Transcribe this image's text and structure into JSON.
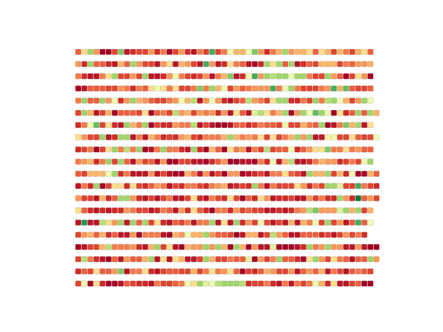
{
  "chart_data": {
    "type": "scatter",
    "marker": "square",
    "colormap": "RdYlGn",
    "vmin": 0,
    "vmax": 9,
    "axes_visible": false,
    "grid": false,
    "x": [
      0,
      1,
      2,
      3,
      4,
      5,
      6,
      7,
      8,
      9,
      10,
      11,
      12,
      13,
      14,
      15,
      15,
      16,
      17,
      18,
      19,
      20,
      21,
      22,
      23,
      24,
      25,
      26,
      27,
      28,
      29,
      30,
      31,
      32,
      33,
      34,
      35,
      36,
      37,
      38,
      39,
      40,
      41,
      42,
      43,
      44,
      45,
      46,
      47,
      48,
      49
    ],
    "rows": [
      "ejqgaadrbcddgcffadgcbfdtdfmhhmrgcfhqghhjejhdhfdhje",
      "gcqeecbheqgddbgkjbhgdbtgbcjfebacqjqeqbcedhhhdfeggh",
      "fcbbfjqddgdqbbcjgmfdcdgbfhrbcmtgqpqqmqqfddqgeadjga",
      "abeeeddgfcfejmjdfjddfrfqhmdgefgggtfmqfdddfgthsedde",
      "fqeeqgmcgqhgeddgfgmhpbgmgcbdepgfdjqqccfdqfpqmhdgqm",
      "dqhbdhaeeedjaeffdpghdgfgcgbjebnpjfhqagqmsqmajceqeqh",
      "cfmsdjcbqhfqadcccgffpbdbaabeecdfeedmddhfeqabfrhqbj",
      "jgddqbcqqbfbhfcedcghdcfffhqhfgfjdjdfhqgqbbkmddjeddm",
      "cdfadjqfpfqabfqfffcbqcaheajfgbfdpdeemcegjjrffjfgee",
      "fghcfqdqebgdebgbaaddbbacegaabbafcmbhpbbcfhggcdfdmq",
      "edhhhmqcfbbbgbddbaahfbgbdaggabcdbffjedbqhhqdhcmaahe",
      "bfcqadjjcjdcegfdbdcffdcfghbcdcqfbfdddjgcfdqqnddtfdc",
      "gddbhceqqgcbdbdefbbdjcbfdcjdaecjgbccdbbgdfccqgcwegd",
      "jecbcbccgfddbcfgebgcjecaffcgdeddbbcbcfgprgggnqhqdh",
      "bubbpjgqbqeqdjcbbedfbffqbjbqcgdmdbdbhbhfmdqdgbetem",
      "dghehcebbgafffbjahgmhhqgeedabhhbdpgebbeeecdbdgdfc",
      "abddhpfffgcbhqdjjbahggqgqhaqhagbbnaaabcqfgqggbbgbaa",
      "dpfcbaebgeehqbjjbjhbbdqhddfeenagdfqeecajqgdjfebeeqg",
      "cedjeegrbffjcbdbeeddhdfjfgjeadcehgddgbegehbfdbefed",
      "dmajcaabedccbfdadefmjqnmpqqqpcddfcbfbfdfmhcjbbdeaa"
    ]
  }
}
